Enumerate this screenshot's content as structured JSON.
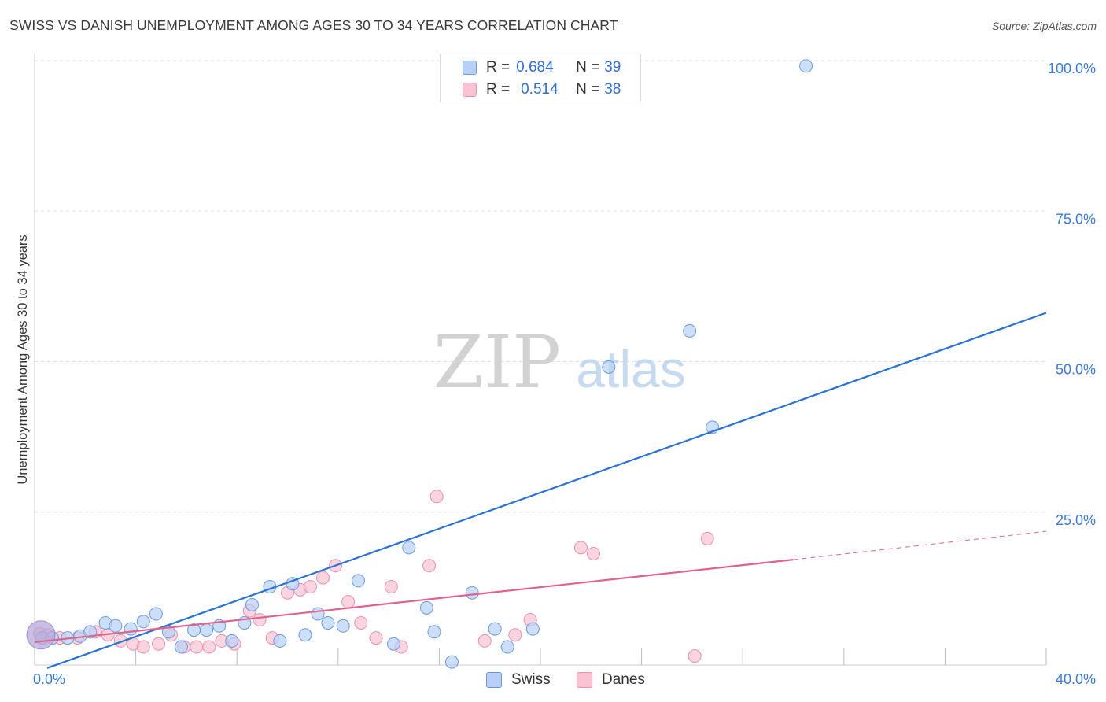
{
  "title": "SWISS VS DANISH UNEMPLOYMENT AMONG AGES 30 TO 34 YEARS CORRELATION CHART",
  "source": "Source: ZipAtlas.com",
  "watermark": {
    "zip": "ZIP",
    "atlas": "atlas"
  },
  "legend": [
    {
      "r_label": "R =",
      "r_value": "0.684",
      "n_label": "N =",
      "n_value": "39"
    },
    {
      "r_label": "R =",
      "r_value": "0.514",
      "n_label": "N =",
      "n_value": "38"
    }
  ],
  "colors": {
    "swiss_fill": "#b8d0f5",
    "swiss_stroke": "#6a9be0",
    "swiss_line": "#2a73d0",
    "danes_fill": "#f8c3d3",
    "danes_stroke": "#e990ae",
    "danes_line": "#e0638f",
    "tick_label": "#3a7bd5",
    "grid": "#dddddd"
  },
  "chart_data": {
    "type": "scatter",
    "title": "SWISS VS DANISH UNEMPLOYMENT AMONG AGES 30 TO 34 YEARS CORRELATION CHART",
    "xlabel": "",
    "ylabel": "Unemployment Among Ages 30 to 34 years",
    "xlim": [
      0,
      40
    ],
    "ylim": [
      0,
      100
    ],
    "x_tick_labels": [
      "0.0%",
      "40.0%"
    ],
    "y_ticks": [
      25,
      50,
      75,
      100
    ],
    "y_tick_labels": [
      "25.0%",
      "50.0%",
      "75.0%",
      "100.0%"
    ],
    "grid": true,
    "legend_position": "top-center and bottom",
    "series": [
      {
        "name": "Swiss",
        "r": 0.684,
        "n": 39,
        "trend": {
          "x0": 0.5,
          "y0": -0.5,
          "x1": 40,
          "y1": 58.5
        },
        "points": [
          [
            0.3,
            4.5
          ],
          [
            0.7,
            4.5
          ],
          [
            1.3,
            4.5
          ],
          [
            1.8,
            4.8
          ],
          [
            2.2,
            5.5
          ],
          [
            2.8,
            7.0
          ],
          [
            3.2,
            6.5
          ],
          [
            3.8,
            6.0
          ],
          [
            4.3,
            7.2
          ],
          [
            4.8,
            8.5
          ],
          [
            5.3,
            5.5
          ],
          [
            5.8,
            3.0
          ],
          [
            6.3,
            5.8
          ],
          [
            6.8,
            5.8
          ],
          [
            7.3,
            6.5
          ],
          [
            7.8,
            4.0
          ],
          [
            8.3,
            7.0
          ],
          [
            8.6,
            10.0
          ],
          [
            9.3,
            13.0
          ],
          [
            9.7,
            4.0
          ],
          [
            10.2,
            13.5
          ],
          [
            10.7,
            5.0
          ],
          [
            11.2,
            8.5
          ],
          [
            11.6,
            7.0
          ],
          [
            12.2,
            6.5
          ],
          [
            12.8,
            14.0
          ],
          [
            14.2,
            3.5
          ],
          [
            14.8,
            19.5
          ],
          [
            15.5,
            9.5
          ],
          [
            15.8,
            5.5
          ],
          [
            16.5,
            0.5
          ],
          [
            17.3,
            12.0
          ],
          [
            18.2,
            6.0
          ],
          [
            18.7,
            3.0
          ],
          [
            19.7,
            6.0
          ],
          [
            22.7,
            49.5
          ],
          [
            25.9,
            55.5
          ],
          [
            26.8,
            39.5
          ],
          [
            30.5,
            99.5
          ]
        ]
      },
      {
        "name": "Danes",
        "r": 0.514,
        "n": 38,
        "trend": {
          "x0": 0,
          "y0": 3.8,
          "x1": 30,
          "y1": 17.5
        },
        "trend_dashed": {
          "x0": 30,
          "y0": 17.5,
          "x1": 40,
          "y1": 22.2
        },
        "points": [
          [
            0.5,
            5.0
          ],
          [
            1.0,
            4.5
          ],
          [
            1.7,
            4.5
          ],
          [
            2.4,
            5.5
          ],
          [
            2.9,
            5.0
          ],
          [
            3.4,
            4.0
          ],
          [
            3.9,
            3.5
          ],
          [
            4.3,
            3.0
          ],
          [
            4.9,
            3.5
          ],
          [
            5.4,
            5.0
          ],
          [
            5.9,
            3.0
          ],
          [
            6.4,
            3.0
          ],
          [
            6.9,
            3.0
          ],
          [
            7.4,
            4.0
          ],
          [
            7.9,
            3.5
          ],
          [
            8.5,
            9.0
          ],
          [
            8.9,
            7.5
          ],
          [
            9.4,
            4.5
          ],
          [
            10.0,
            12.0
          ],
          [
            10.5,
            12.5
          ],
          [
            10.9,
            13.0
          ],
          [
            11.4,
            14.5
          ],
          [
            11.9,
            16.5
          ],
          [
            12.4,
            10.5
          ],
          [
            12.9,
            7.0
          ],
          [
            13.5,
            4.5
          ],
          [
            14.1,
            13.0
          ],
          [
            14.5,
            3.0
          ],
          [
            15.6,
            16.5
          ],
          [
            15.9,
            28.0
          ],
          [
            17.8,
            4.0
          ],
          [
            19.0,
            5.0
          ],
          [
            19.6,
            7.5
          ],
          [
            21.6,
            19.5
          ],
          [
            22.1,
            18.5
          ],
          [
            26.1,
            1.5
          ],
          [
            26.6,
            21.0
          ],
          [
            0.2,
            5.2
          ]
        ]
      }
    ]
  },
  "legend_bottom": [
    {
      "label": "Swiss"
    },
    {
      "label": "Danes"
    }
  ]
}
